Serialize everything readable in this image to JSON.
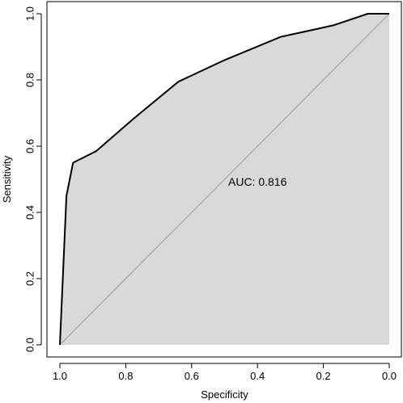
{
  "chart_data": {
    "type": "line",
    "title": "",
    "xlabel": "Specificity",
    "ylabel": "Sensitivity",
    "xlim": [
      1.0,
      0.0
    ],
    "ylim": [
      0.0,
      1.0
    ],
    "x_reversed": true,
    "grid": false,
    "legend": "none",
    "x_ticks": [
      1.0,
      0.8,
      0.6,
      0.4,
      0.2,
      0.0
    ],
    "x_tick_labels": [
      "1.0",
      "0.8",
      "0.6",
      "0.4",
      "0.2",
      "0.0"
    ],
    "y_ticks": [
      0.0,
      0.2,
      0.4,
      0.6,
      0.8,
      1.0
    ],
    "y_tick_labels": [
      "0.0",
      "0.2",
      "0.4",
      "0.6",
      "0.8",
      "1.0"
    ],
    "annotation": "AUC: 0.816",
    "annotation_position": {
      "x": 0.4,
      "y": 0.48
    },
    "fill_color": "#d9d9d9",
    "line_color": "#000000",
    "diagonal_color": "#9a9a9a",
    "series": [
      {
        "x": [
          1.0,
          0.98,
          0.96,
          0.89,
          0.78,
          0.64,
          0.5,
          0.33,
          0.17,
          0.065,
          0.0
        ],
        "y": [
          0.0,
          0.45,
          0.55,
          0.585,
          0.68,
          0.795,
          0.86,
          0.93,
          0.965,
          1.0,
          1.0
        ]
      }
    ]
  }
}
